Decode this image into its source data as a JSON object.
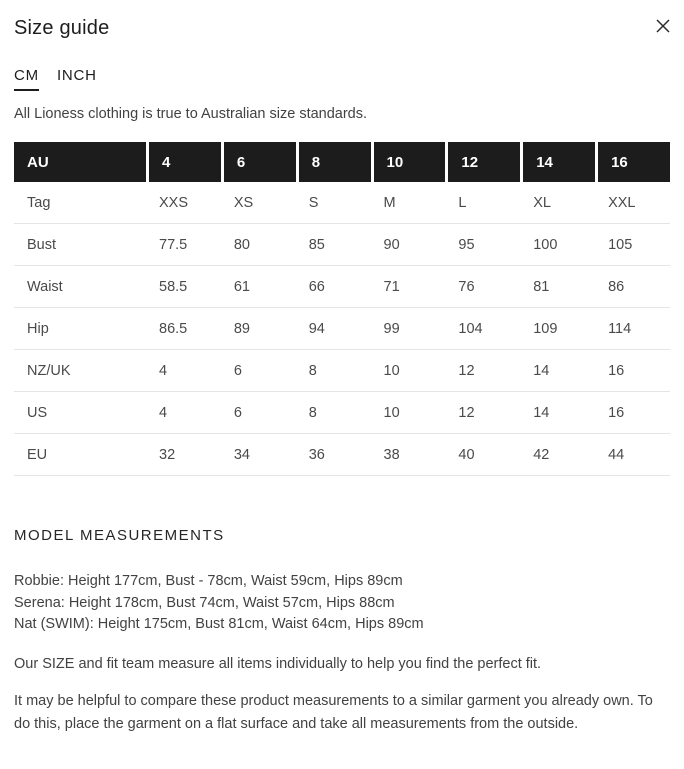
{
  "modal": {
    "title": "Size guide"
  },
  "tabs": [
    {
      "label": "CM",
      "active": true
    },
    {
      "label": "INCH",
      "active": false
    }
  ],
  "intro": "All Lioness clothing is true to Australian size standards.",
  "size_table": {
    "header": [
      "AU",
      "4",
      "6",
      "8",
      "10",
      "12",
      "14",
      "16"
    ],
    "rows": [
      {
        "label": "Tag",
        "values": [
          "XXS",
          "XS",
          "S",
          "M",
          "L",
          "XL",
          "XXL"
        ]
      },
      {
        "label": "Bust",
        "values": [
          "77.5",
          "80",
          "85",
          "90",
          "95",
          "100",
          "105"
        ]
      },
      {
        "label": "Waist",
        "values": [
          "58.5",
          "61",
          "66",
          "71",
          "76",
          "81",
          "86"
        ]
      },
      {
        "label": "Hip",
        "values": [
          "86.5",
          "89",
          "94",
          "99",
          "104",
          "109",
          "114"
        ]
      },
      {
        "label": "NZ/UK",
        "values": [
          "4",
          "6",
          "8",
          "10",
          "12",
          "14",
          "16"
        ]
      },
      {
        "label": "US",
        "values": [
          "4",
          "6",
          "8",
          "10",
          "12",
          "14",
          "16"
        ]
      },
      {
        "label": "EU",
        "values": [
          "32",
          "34",
          "36",
          "38",
          "40",
          "42",
          "44"
        ]
      }
    ]
  },
  "model_measurements": {
    "heading": "MODEL MEASUREMENTS",
    "models": [
      "Robbie: Height 177cm, Bust - 78cm, Waist 59cm, Hips 89cm",
      "Serena: Height 178cm, Bust 74cm, Waist 57cm, Hips 88cm",
      "Nat (SWIM): Height 175cm, Bust 81cm, Waist 64cm, Hips 89cm"
    ]
  },
  "paragraphs": [
    "Our SIZE and fit team measure all items individually to help you find the perfect fit.",
    "It may be helpful to compare these product measurements to a similar garment you already own. To do this, place the garment on a flat surface and take all measurements from the outside."
  ],
  "colors": {
    "table_header_bg": "#1c1c1c",
    "table_header_text": "#ffffff",
    "body_text": "#424242",
    "heading_text": "#262626",
    "row_border": "#e5e5e5",
    "tab_underline": "#1d1d1d"
  }
}
